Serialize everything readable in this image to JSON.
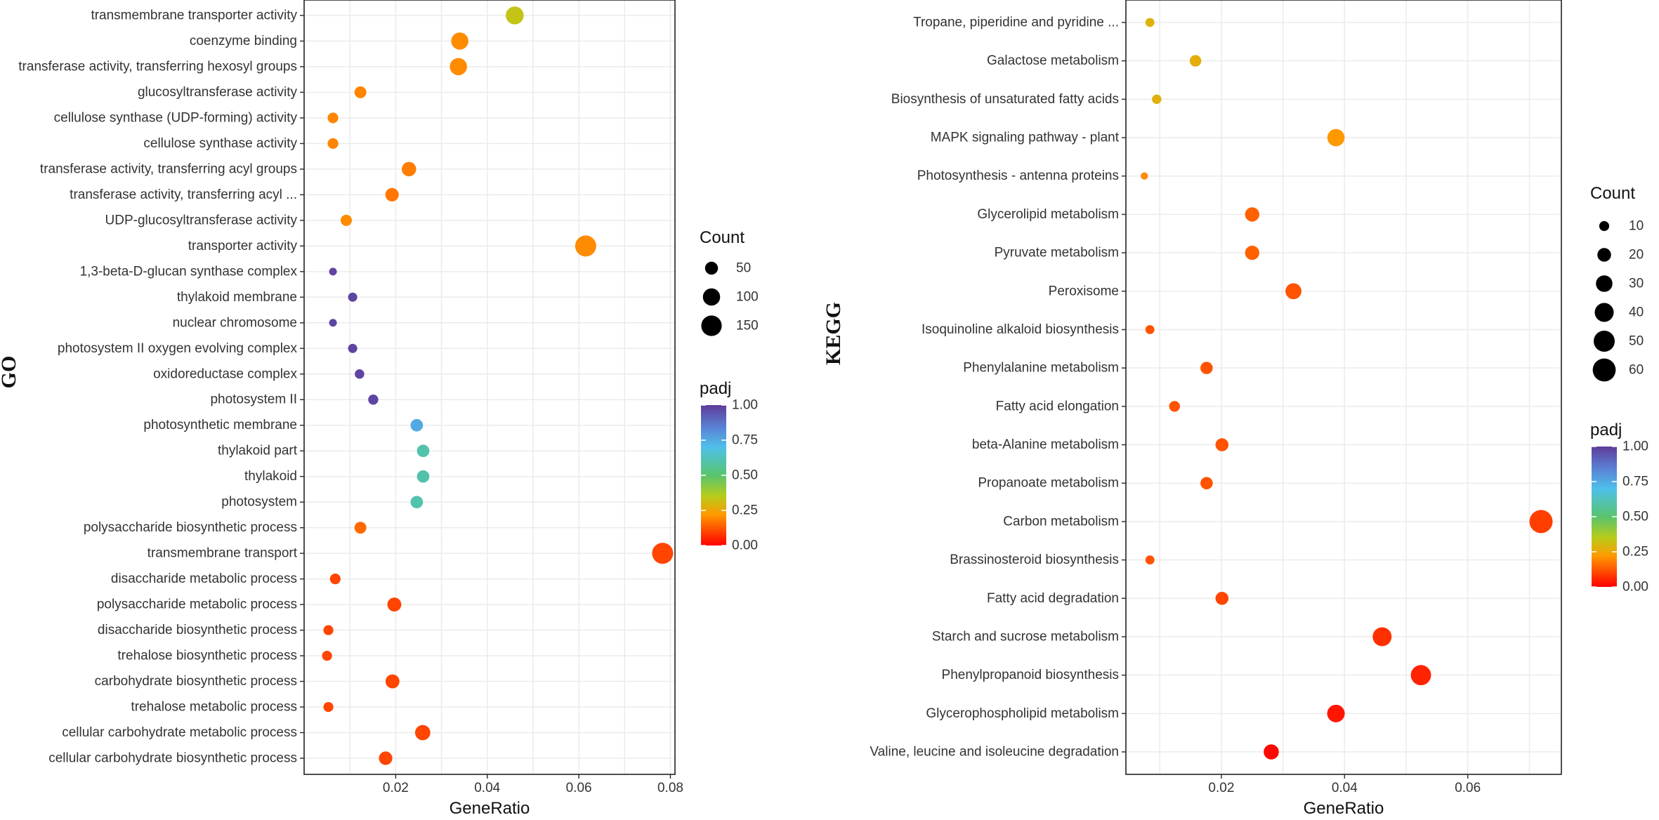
{
  "chart_data": [
    {
      "type": "scatter",
      "panel": "GO",
      "ylabel": "GO",
      "xlabel": "GeneRatio",
      "xlim": [
        0.0,
        0.081
      ],
      "xticks": [
        0.02,
        0.04,
        0.06,
        0.08
      ],
      "xtick_labels": [
        "0.02",
        "0.04",
        "0.06",
        "0.08"
      ],
      "terms": [
        "transmembrane transporter activity",
        "coenzyme binding",
        "transferase activity, transferring hexosyl groups",
        "glucosyltransferase activity",
        "cellulose synthase (UDP-forming) activity",
        "cellulose synthase activity",
        "transferase activity, transferring acyl groups",
        "transferase activity, transferring acyl ...",
        "UDP-glucosyltransferase activity",
        "transporter activity",
        "1,3-beta-D-glucan synthase complex",
        "thylakoid membrane",
        "nuclear chromosome",
        "photosystem II oxygen evolving complex",
        "oxidoreductase complex",
        "photosystem II",
        "photosynthetic membrane",
        "thylakoid part",
        "thylakoid",
        "photosystem",
        "polysaccharide biosynthetic process",
        "transmembrane transport",
        "disaccharide metabolic process",
        "polysaccharide metabolic process",
        "disaccharide biosynthetic process",
        "trehalose biosynthetic process",
        "carbohydrate biosynthetic process",
        "trehalose metabolic process",
        "cellular carbohydrate metabolic process",
        "cellular carbohydrate biosynthetic process"
      ],
      "gene_ratio": [
        0.046,
        0.034,
        0.0337,
        0.0123,
        0.0063,
        0.0063,
        0.0229,
        0.0192,
        0.0092,
        0.0615,
        0.0063,
        0.0106,
        0.0063,
        0.0106,
        0.0121,
        0.0151,
        0.0246,
        0.026,
        0.026,
        0.0246,
        0.0123,
        0.0783,
        0.0068,
        0.0197,
        0.0053,
        0.005,
        0.0193,
        0.0053,
        0.0259,
        0.0178
      ],
      "count": [
        110,
        100,
        100,
        40,
        30,
        30,
        65,
        55,
        35,
        160,
        12,
        20,
        12,
        20,
        22,
        26,
        45,
        45,
        45,
        45,
        40,
        160,
        30,
        60,
        25,
        25,
        60,
        25,
        75,
        55
      ],
      "padj": [
        0.33,
        0.2,
        0.2,
        0.19,
        0.19,
        0.19,
        0.18,
        0.17,
        0.2,
        0.2,
        0.98,
        0.98,
        0.98,
        0.98,
        0.98,
        0.98,
        0.75,
        0.6,
        0.6,
        0.6,
        0.15,
        0.1,
        0.1,
        0.1,
        0.1,
        0.1,
        0.1,
        0.1,
        0.1,
        0.1
      ],
      "size_legend": {
        "title": "Count",
        "values": [
          50,
          100,
          150
        ],
        "labels": [
          "50",
          "100",
          "150"
        ]
      },
      "color_legend": {
        "title": "padj",
        "ticks": [
          1.0,
          0.75,
          0.5,
          0.25,
          0.0
        ],
        "labels": [
          "1.00",
          "0.75",
          "0.50",
          "0.25",
          "0.00"
        ]
      }
    },
    {
      "type": "scatter",
      "panel": "KEGG",
      "ylabel": "KEGG",
      "xlabel": "GeneRatio",
      "xlim": [
        0.0045,
        0.0752
      ],
      "xticks": [
        0.02,
        0.04,
        0.06
      ],
      "xtick_labels": [
        "0.02",
        "0.04",
        "0.06"
      ],
      "terms": [
        "Tropane, piperidine and pyridine ...",
        "Galactose metabolism",
        "Biosynthesis of unsaturated fatty acids",
        "MAPK signaling pathway - plant",
        "Photosynthesis - antenna proteins",
        "Glycerolipid metabolism",
        "Pyruvate metabolism",
        "Peroxisome",
        "Isoquinoline alkaloid biosynthesis",
        "Phenylalanine metabolism",
        "Fatty acid elongation",
        "beta-Alanine metabolism",
        "Propanoate metabolism",
        "Carbon metabolism",
        "Brassinosteroid biosynthesis",
        "Fatty acid degradation",
        "Starch and sucrose metabolism",
        "Phenylpropanoid biosynthesis",
        "Glycerophospholipid metabolism",
        "Valine, leucine and isoleucine degradation"
      ],
      "gene_ratio": [
        0.0084,
        0.0158,
        0.0095,
        0.0386,
        0.0075,
        0.025,
        0.025,
        0.0317,
        0.0084,
        0.0176,
        0.0124,
        0.0201,
        0.0176,
        0.0719,
        0.0084,
        0.0201,
        0.0461,
        0.0524,
        0.0386,
        0.0281
      ],
      "count": [
        8,
        14,
        9,
        33,
        5,
        22,
        22,
        28,
        8,
        16,
        12,
        18,
        16,
        61,
        8,
        18,
        40,
        46,
        34,
        25
      ],
      "padj": [
        0.28,
        0.27,
        0.28,
        0.22,
        0.2,
        0.14,
        0.14,
        0.12,
        0.12,
        0.12,
        0.12,
        0.12,
        0.12,
        0.09,
        0.12,
        0.1,
        0.07,
        0.05,
        0.03,
        0.01
      ],
      "size_legend": {
        "title": "Count",
        "values": [
          10,
          20,
          30,
          40,
          50,
          60
        ],
        "labels": [
          "10",
          "20",
          "30",
          "40",
          "50",
          "60"
        ]
      },
      "color_legend": {
        "title": "padj",
        "ticks": [
          1.0,
          0.75,
          0.5,
          0.25,
          0.0
        ],
        "labels": [
          "1.00",
          "0.75",
          "0.50",
          "0.25",
          "0.00"
        ]
      }
    }
  ]
}
